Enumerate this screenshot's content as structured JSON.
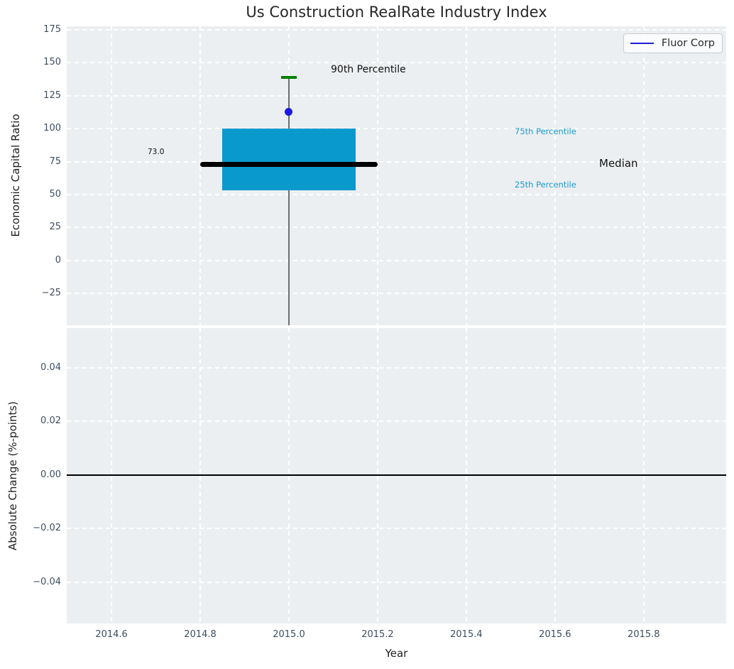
{
  "title": "Us Construction RealRate Industry Index",
  "legend": {
    "label": "Fluor Corp",
    "line_color": "#1f1fd6"
  },
  "axes": {
    "top_ylabel": "Economic Capital Ratio",
    "bottom_ylabel": "Absolute Change (%-points)",
    "xlabel": "Year"
  },
  "annotations": {
    "p90": "90th Percentile",
    "p75": "75th Percentile",
    "median": "Median",
    "p25": "25th Percentile",
    "median_value": "73.0"
  },
  "colors": {
    "axes_background": "#eceff1",
    "grid": "#ffffff",
    "box_fill": "#0a99cc",
    "median_line": "#000000",
    "whisker": "#6e6e6e",
    "whisker_cap_90th": "#008000",
    "company_dot": "#1a1ae0",
    "tick_label": "#3e4e60",
    "percentile_text": "#1b9bce",
    "zero_line": "#000000"
  },
  "x_axis": {
    "xlim": [
      2014.499,
      2015.986
    ],
    "xticks": [
      2014.6,
      2014.8,
      2015.0,
      2015.2,
      2015.4,
      2015.6,
      2015.8
    ],
    "xtick_labels": [
      "2014.6",
      "2014.8",
      "2015.0",
      "2015.2",
      "2015.4",
      "2015.6",
      "2015.8"
    ]
  },
  "chart_data": [
    {
      "type": "boxplot",
      "title": "Us Construction RealRate Industry Index",
      "ylabel": "Economic Capital Ratio",
      "ylim": [
        -49.1,
        177.7
      ],
      "yticks": [
        175,
        150,
        125,
        100,
        75,
        50,
        25,
        0,
        -25
      ],
      "ytick_labels": [
        "175",
        "150",
        "125",
        "100",
        "75",
        "50",
        "25",
        "0",
        "−25"
      ],
      "grid": true,
      "x_center": 2015.0,
      "box_width_years": 0.3,
      "median_line_width_years": 0.4,
      "percentiles": {
        "p90": 139,
        "p75": 100,
        "median": 73.0,
        "p25": 53,
        "p10": -49
      },
      "whisker_low_clipped": true,
      "company_point": {
        "name": "Fluor Corp",
        "x": 2015.0,
        "y": 113
      },
      "legend": [
        "Fluor Corp"
      ],
      "legend_position": "upper right"
    },
    {
      "type": "line",
      "ylabel": "Absolute Change (%-points)",
      "xlabel": "Year",
      "ylim": [
        -0.0554,
        0.0548
      ],
      "yticks": [
        0.04,
        0.02,
        0.0,
        -0.02,
        -0.04
      ],
      "ytick_labels": [
        "0.04",
        "0.02",
        "0.00",
        "−0.02",
        "−0.04"
      ],
      "grid": true,
      "zero_line": 0.0,
      "series": []
    }
  ]
}
